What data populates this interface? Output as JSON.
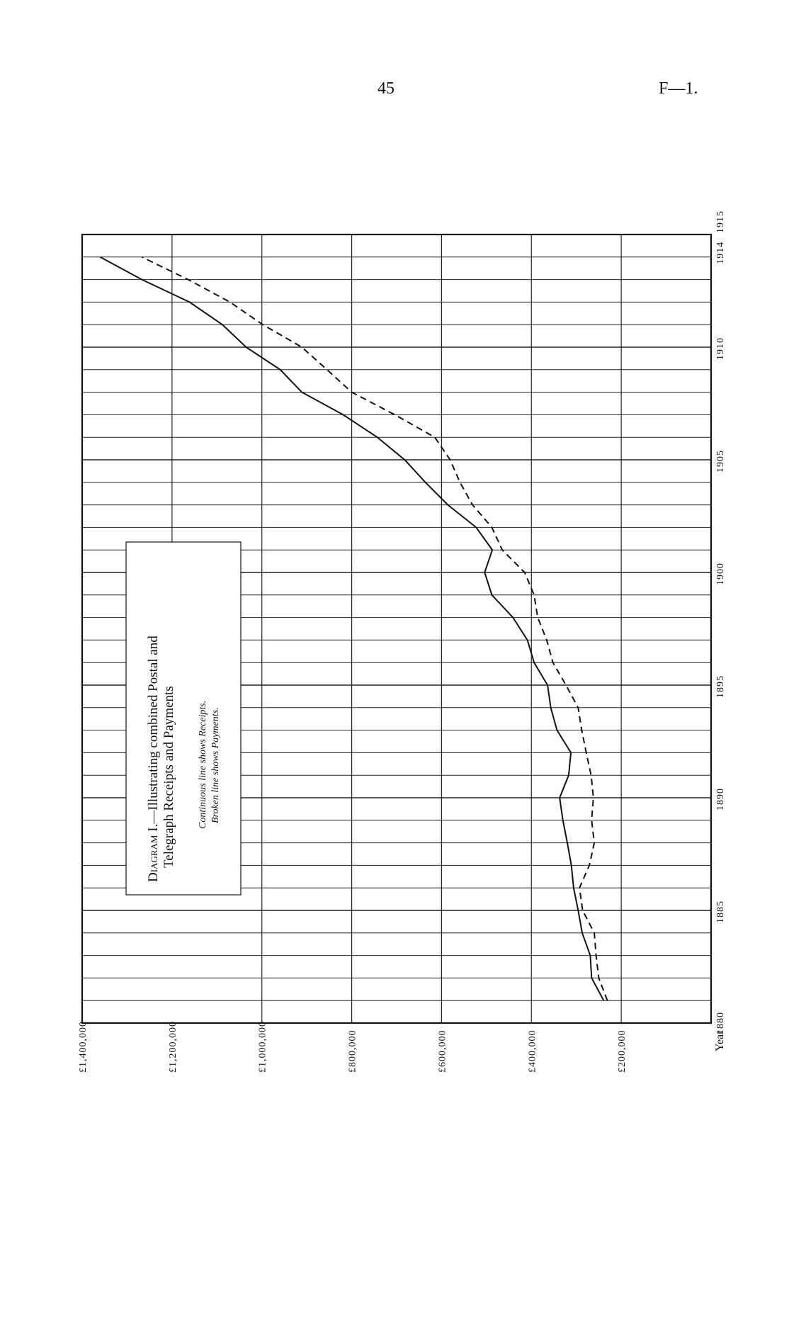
{
  "header": {
    "page_number": "45",
    "document_ref": "F—1."
  },
  "chart_data": {
    "type": "line",
    "orientation": "rotated 90°: years run bottom-to-top, values increase right-to-left",
    "title_prefix": "Diagram I.",
    "title": "—Illustrating combined Postal and",
    "title_line2": "Telegraph Receipts and Payments",
    "legend": [
      "Continuous line shows Receipts.",
      "Broken line shows Payments."
    ],
    "x_label": "Year",
    "x_tick_labels": [
      {
        "year": 1880,
        "label": "1880"
      },
      {
        "year": 1885,
        "label": "1885"
      },
      {
        "year": 1890,
        "label": "1890"
      },
      {
        "year": 1895,
        "label": "1895"
      },
      {
        "year": 1900,
        "label": "1900"
      },
      {
        "year": 1905,
        "label": "1905"
      },
      {
        "year": 1910,
        "label": "1910"
      },
      {
        "year": 1914,
        "label": "1914"
      },
      {
        "year": 1915,
        "label": "1915"
      }
    ],
    "xlim": [
      1880,
      1915
    ],
    "ylim": [
      0,
      1400000
    ],
    "y_tick_labels": [
      {
        "value": 1400000,
        "label": "£1,400,000"
      },
      {
        "value": 1200000,
        "label": "£1,200,000"
      },
      {
        "value": 1000000,
        "label": "£1,000,000"
      },
      {
        "value": 800000,
        "label": "£800,000"
      },
      {
        "value": 600000,
        "label": "£600,000"
      },
      {
        "value": 400000,
        "label": "£400,000"
      },
      {
        "value": 200000,
        "label": "£200,000"
      }
    ],
    "grid": true,
    "x": [
      1881,
      1882,
      1883,
      1884,
      1885,
      1886,
      1887,
      1888,
      1889,
      1890,
      1891,
      1892,
      1893,
      1894,
      1895,
      1896,
      1897,
      1898,
      1899,
      1900,
      1901,
      1902,
      1903,
      1904,
      1905,
      1906,
      1907,
      1908,
      1909,
      1910,
      1911,
      1912,
      1913,
      1914
    ],
    "series": [
      {
        "name": "Receipts",
        "style": "solid",
        "values": [
          239000,
          266000,
          269000,
          287000,
          296000,
          306000,
          311000,
          320000,
          330000,
          337000,
          317000,
          312000,
          343000,
          357000,
          364000,
          394000,
          409000,
          441000,
          488000,
          504000,
          487000,
          523000,
          586000,
          636000,
          682000,
          743000,
          819000,
          911000,
          959000,
          1035000,
          1088000,
          1161000,
          1267000,
          1360000
        ]
      },
      {
        "name": "Payments",
        "style": "dashed",
        "values": [
          231000,
          250000,
          256000,
          260000,
          286000,
          293000,
          271000,
          260000,
          266000,
          262000,
          267000,
          278000,
          288000,
          296000,
          323000,
          352000,
          366000,
          386000,
          394000,
          415000,
          465000,
          488000,
          531000,
          559000,
          581000,
          615000,
          704000,
          800000,
          855000,
          911000,
          998000,
          1071000,
          1164000,
          1267000
        ]
      }
    ],
    "colors": {
      "ink": "#111111",
      "paper": "#ffffff"
    }
  }
}
